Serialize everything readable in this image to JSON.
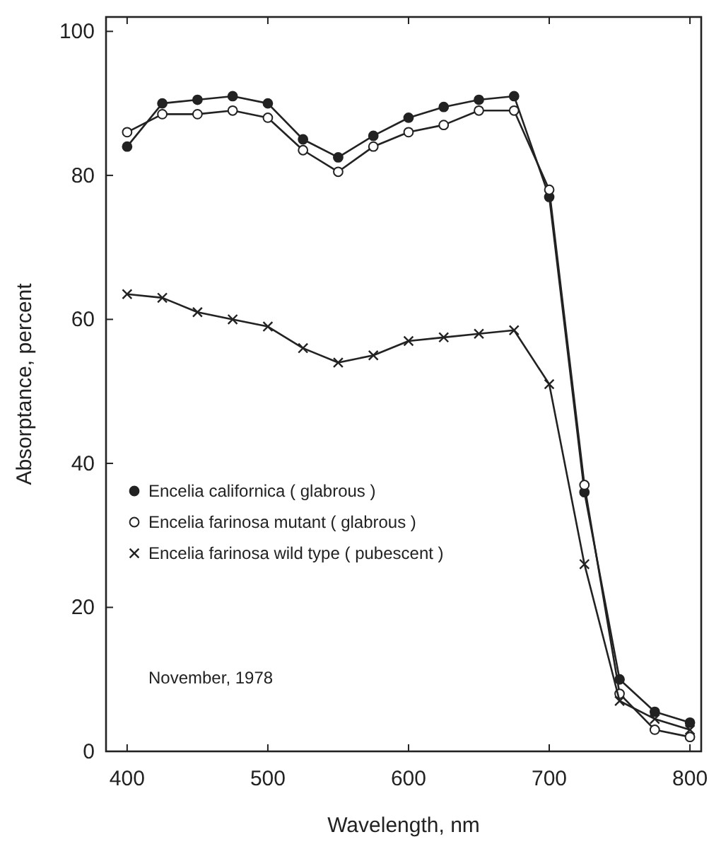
{
  "chart_data": {
    "type": "line",
    "xlabel": "Wavelength, nm",
    "ylabel": "Absorptance,  percent",
    "x": [
      400,
      425,
      450,
      475,
      500,
      525,
      550,
      575,
      600,
      625,
      650,
      675,
      700,
      725,
      750,
      775,
      800
    ],
    "series": [
      {
        "name": "Encelia californica ( glabrous )",
        "color": "#222222",
        "marker": "circle",
        "values": [
          84,
          90,
          90.5,
          91,
          90,
          85,
          82.5,
          85.5,
          88,
          89.5,
          90.5,
          91,
          77,
          36,
          10,
          5.5,
          4
        ]
      },
      {
        "name": "Encelia farinosa mutant ( glabrous )",
        "color": "#222222",
        "marker": "open-circle",
        "values": [
          86,
          88.5,
          88.5,
          89,
          88,
          83.5,
          80.5,
          84,
          86,
          87,
          89,
          89,
          78,
          37,
          8,
          3,
          2
        ]
      },
      {
        "name": "Encelia farinosa wild type ( pubescent )",
        "color": "#222222",
        "marker": "cross",
        "values": [
          63.5,
          63,
          61,
          60,
          59,
          56,
          54,
          55,
          57,
          57.5,
          58,
          58.5,
          51,
          26,
          7,
          4.5,
          3
        ]
      }
    ],
    "xlim": [
      385,
      808
    ],
    "ylim": [
      0,
      102
    ],
    "xticks": [
      400,
      500,
      600,
      700,
      800
    ],
    "yticks": [
      0,
      20,
      40,
      60,
      80,
      100
    ],
    "grid": false,
    "legend": "bottom left",
    "line_style": "solid",
    "annotations": [
      "November, 1978"
    ]
  }
}
